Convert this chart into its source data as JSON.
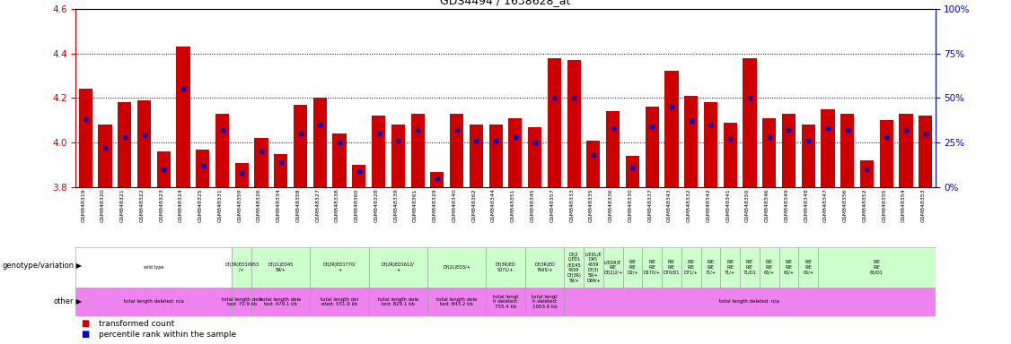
{
  "title": "GDS4494 / 1638628_at",
  "ylim_left": [
    3.8,
    4.6
  ],
  "ylim_right": [
    0,
    100
  ],
  "yticks_left": [
    3.8,
    4.0,
    4.2,
    4.4,
    4.6
  ],
  "yticks_right": [
    0,
    25,
    50,
    75,
    100
  ],
  "hlines": [
    4.0,
    4.2,
    4.4
  ],
  "bar_color": "#cc0000",
  "blue_color": "#0000cc",
  "sample_ids": [
    "GSM848319",
    "GSM848320",
    "GSM848321",
    "GSM848322",
    "GSM848323",
    "GSM848324",
    "GSM848325",
    "GSM848331",
    "GSM848359",
    "GSM848326",
    "GSM848334",
    "GSM848358",
    "GSM848327",
    "GSM848338",
    "GSM848360",
    "GSM848328",
    "GSM848339",
    "GSM848361",
    "GSM848329",
    "GSM848340",
    "GSM848362",
    "GSM848344",
    "GSM848351",
    "GSM848345",
    "GSM848357",
    "GSM848333",
    "GSM848335",
    "GSM848336",
    "GSM848330",
    "GSM848337",
    "GSM848343",
    "GSM848332",
    "GSM848342",
    "GSM848341",
    "GSM848350",
    "GSM848346",
    "GSM848349",
    "GSM848348",
    "GSM848347",
    "GSM848356",
    "GSM848352",
    "GSM848355",
    "GSM848354",
    "GSM848353"
  ],
  "red_values": [
    4.24,
    4.08,
    4.18,
    4.19,
    3.96,
    4.43,
    3.97,
    4.13,
    3.91,
    4.02,
    3.95,
    4.17,
    4.2,
    4.04,
    3.9,
    4.12,
    4.08,
    4.13,
    3.87,
    4.13,
    4.08,
    4.08,
    4.11,
    4.07,
    4.38,
    4.37,
    4.01,
    4.14,
    3.94,
    4.16,
    4.32,
    4.21,
    4.18,
    4.09,
    4.38,
    4.11,
    4.13,
    4.08,
    4.15,
    4.13,
    3.92,
    4.1,
    4.13,
    4.12
  ],
  "blue_values_pct": [
    38,
    22,
    28,
    29,
    10,
    55,
    12,
    32,
    8,
    20,
    14,
    30,
    35,
    25,
    9,
    30,
    26,
    32,
    5,
    32,
    26,
    26,
    28,
    25,
    50,
    50,
    18,
    33,
    11,
    34,
    45,
    37,
    35,
    27,
    50,
    28,
    32,
    26,
    33,
    32,
    10,
    28,
    32,
    30
  ],
  "genotype_groups": [
    {
      "label": "wild type",
      "start": 0,
      "end": 8,
      "color": "#ffffff",
      "text_color": "#000000"
    },
    {
      "label": "Df(3R)ED10953\n/+",
      "start": 8,
      "end": 9,
      "color": "#ccffcc",
      "text_color": "#000000"
    },
    {
      "label": "Df(2L)ED45\n59/+",
      "start": 9,
      "end": 12,
      "color": "#ccffcc",
      "text_color": "#000000"
    },
    {
      "label": "Df(2R)ED1770/\n+",
      "start": 12,
      "end": 15,
      "color": "#ccffcc",
      "text_color": "#000000"
    },
    {
      "label": "Df(2R)ED1612/\n+",
      "start": 15,
      "end": 18,
      "color": "#ccffcc",
      "text_color": "#000000"
    },
    {
      "label": "Df(2L)ED3/+",
      "start": 18,
      "end": 21,
      "color": "#ccffcc",
      "text_color": "#000000"
    },
    {
      "label": "Df(3R)ED\n5071/+",
      "start": 21,
      "end": 23,
      "color": "#ccffcc",
      "text_color": "#000000"
    },
    {
      "label": "Df(3R)ED\n7665/+",
      "start": 23,
      "end": 25,
      "color": "#ccffcc",
      "text_color": "#000000"
    },
    {
      "label": "Df(2\nL)EDL\n/ED45\n4559\nDf(3R)\n59/+",
      "start": 25,
      "end": 26,
      "color": "#ccffcc",
      "text_color": "#000000"
    },
    {
      "label": "L/EDL/E\nD45\n4559\nDf(3)\n59/+\nD69/+",
      "start": 26,
      "end": 27,
      "color": "#ccffcc",
      "text_color": "#000000"
    },
    {
      "label": "L/EDR/E\nRIE\nDf(2)2/+",
      "start": 27,
      "end": 28,
      "color": "#ccffcc",
      "text_color": "#000000"
    },
    {
      "label": "RIE\nRIE\nD2/+",
      "start": 28,
      "end": 29,
      "color": "#ccffcc",
      "text_color": "#000000"
    },
    {
      "label": "RIE\nRIE\nD170/+",
      "start": 29,
      "end": 30,
      "color": "#ccffcc",
      "text_color": "#000000"
    },
    {
      "label": "RIE\nRIE\nD70/D1",
      "start": 30,
      "end": 31,
      "color": "#ccffcc",
      "text_color": "#000000"
    },
    {
      "label": "RIE\nRIE\nD71/+",
      "start": 31,
      "end": 32,
      "color": "#ccffcc",
      "text_color": "#000000"
    },
    {
      "label": "RIE\nRIE\n71/+",
      "start": 32,
      "end": 33,
      "color": "#ccffcc",
      "text_color": "#000000"
    },
    {
      "label": "RIE\nRIE\n71/+",
      "start": 33,
      "end": 34,
      "color": "#ccffcc",
      "text_color": "#000000"
    },
    {
      "label": "RIE\nRIE\n71/D1",
      "start": 34,
      "end": 35,
      "color": "#ccffcc",
      "text_color": "#000000"
    },
    {
      "label": "RIE\nRIE\n65/+",
      "start": 35,
      "end": 36,
      "color": "#ccffcc",
      "text_color": "#000000"
    },
    {
      "label": "RIE\nRIE\n65/+",
      "start": 36,
      "end": 37,
      "color": "#ccffcc",
      "text_color": "#000000"
    },
    {
      "label": "RIE\nRIE\n65/+",
      "start": 37,
      "end": 38,
      "color": "#ccffcc",
      "text_color": "#000000"
    },
    {
      "label": "RIE\nRIE\n65/D1",
      "start": 38,
      "end": 44,
      "color": "#ccffcc",
      "text_color": "#000000"
    }
  ],
  "other_groups": [
    {
      "label": "total length deleted: n/a",
      "start": 0,
      "end": 8,
      "color": "#ee82ee"
    },
    {
      "label": "total length dele\nted: 70.9 kb",
      "start": 8,
      "end": 9,
      "color": "#ee82ee"
    },
    {
      "label": "total length dele\nted: 479.1 kb",
      "start": 9,
      "end": 12,
      "color": "#ee82ee"
    },
    {
      "label": "total length del\neted: 551.9 kb",
      "start": 12,
      "end": 15,
      "color": "#ee82ee"
    },
    {
      "label": "total length dele\nted: 829.1 kb",
      "start": 15,
      "end": 18,
      "color": "#ee82ee"
    },
    {
      "label": "total length dele\nted: 843.2 kb",
      "start": 18,
      "end": 21,
      "color": "#ee82ee"
    },
    {
      "label": "total lengt\nh deleted:\n755.4 kb",
      "start": 21,
      "end": 23,
      "color": "#ee82ee"
    },
    {
      "label": "total lengt\nh deleted:\n1003.6 kb",
      "start": 23,
      "end": 25,
      "color": "#ee82ee"
    },
    {
      "label": "total length deleted: n/a",
      "start": 25,
      "end": 44,
      "color": "#ee82ee"
    }
  ],
  "left_labels": [
    "genotype/variation",
    "other"
  ],
  "legend_items": [
    {
      "color": "#cc0000",
      "label": "transformed count"
    },
    {
      "color": "#0000cc",
      "label": "percentile rank within the sample"
    }
  ],
  "bg_color": "#f0f0f0"
}
